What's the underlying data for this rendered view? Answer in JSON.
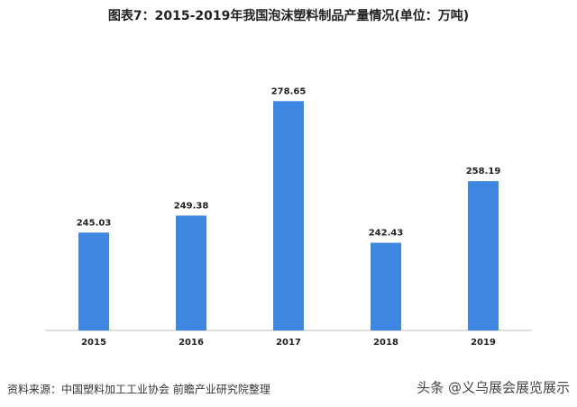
{
  "chart_data": {
    "type": "bar",
    "title": "图表7：2015-2019年我国泡沫塑料制品产量情况(单位：万吨)",
    "categories": [
      "2015",
      "2016",
      "2017",
      "2018",
      "2019"
    ],
    "values": [
      245.03,
      249.38,
      278.65,
      242.43,
      258.19
    ],
    "color": "#3f86e2",
    "ylim": [
      220,
      290
    ],
    "source": "资料来源：中国塑料加工工业协会 前瞻产业研究院整理",
    "watermark": "头条 @义乌展会展览展示"
  }
}
